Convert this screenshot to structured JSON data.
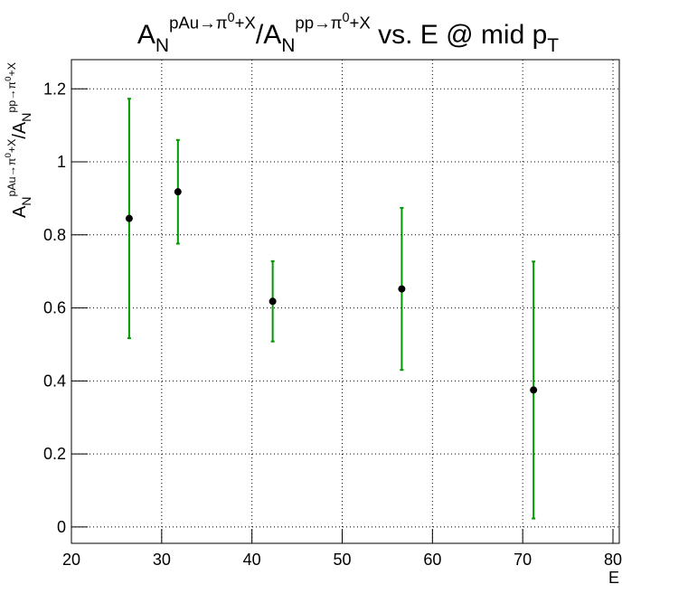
{
  "chart_data": {
    "type": "scatter",
    "title": [
      {
        "text": "A",
        "level": "base"
      },
      {
        "text": "N",
        "level": "sub"
      },
      {
        "text": "pAu→π",
        "level": "sup"
      },
      {
        "text": "0",
        "level": "supsup"
      },
      {
        "text": "+X",
        "level": "sup"
      },
      {
        "text": "/A",
        "level": "base"
      },
      {
        "text": "N",
        "level": "sub"
      },
      {
        "text": "pp→π",
        "level": "sup"
      },
      {
        "text": "0",
        "level": "supsup"
      },
      {
        "text": "+X",
        "level": "sup"
      },
      {
        "text": " vs. E @ mid p",
        "level": "base"
      },
      {
        "text": "T",
        "level": "sub"
      }
    ],
    "x_label": "E",
    "y_label": [
      {
        "text": "A",
        "level": "base"
      },
      {
        "text": "N",
        "level": "sub"
      },
      {
        "text": "pAu→π",
        "level": "sup"
      },
      {
        "text": "0",
        "level": "supsup"
      },
      {
        "text": "+X",
        "level": "sup"
      },
      {
        "text": "/A",
        "level": "base"
      },
      {
        "text": "N",
        "level": "sub"
      },
      {
        "text": "pp→π",
        "level": "sup"
      },
      {
        "text": "0",
        "level": "supsup"
      },
      {
        "text": "+X",
        "level": "sup"
      }
    ],
    "x": [
      26.4,
      31.8,
      42.3,
      56.6,
      71.2
    ],
    "series": [
      {
        "color": "#000000",
        "error_color": "#009900",
        "values": [
          0.845,
          0.918,
          0.618,
          0.652,
          0.375
        ],
        "errors": [
          0.328,
          0.142,
          0.11,
          0.222,
          0.352
        ]
      }
    ],
    "xlim": [
      20,
      80.7
    ],
    "ylim": [
      -0.045,
      1.28
    ],
    "xticks": [
      20,
      30,
      40,
      50,
      60,
      70,
      80
    ],
    "yticks": [
      0,
      0.2,
      0.4,
      0.6,
      0.8,
      1,
      1.2
    ],
    "grid": true
  }
}
